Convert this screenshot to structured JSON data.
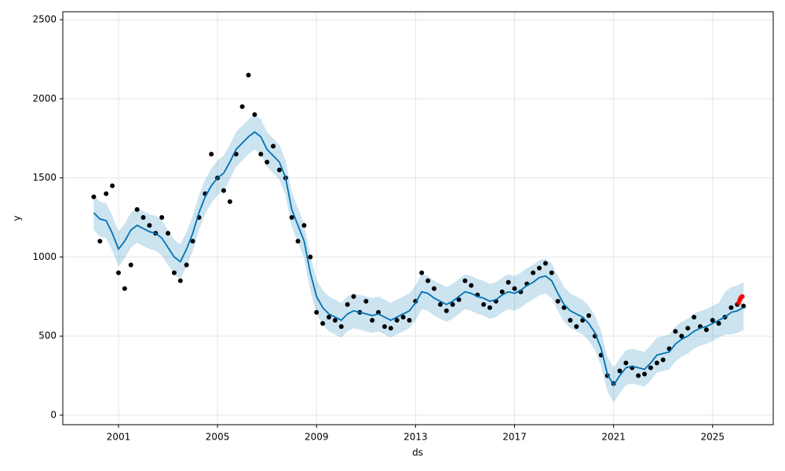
{
  "chart_data": {
    "type": "forecast",
    "xlabel": "ds",
    "ylabel": "y",
    "xlim": [
      1998.75,
      2027.45
    ],
    "xticks": [
      2001,
      2005,
      2009,
      2013,
      2017,
      2021,
      2025
    ],
    "ylim": [
      -60,
      2550
    ],
    "yticks": [
      0,
      500,
      1000,
      1500,
      2000,
      2500
    ],
    "grid": true,
    "x": [
      2000,
      2000.25,
      2000.5,
      2000.75,
      2001,
      2001.25,
      2001.5,
      2001.75,
      2002,
      2002.25,
      2002.5,
      2002.75,
      2003,
      2003.25,
      2003.5,
      2003.75,
      2004,
      2004.25,
      2004.5,
      2004.75,
      2005,
      2005.25,
      2005.5,
      2005.75,
      2006,
      2006.25,
      2006.5,
      2006.75,
      2007,
      2007.25,
      2007.5,
      2007.75,
      2008,
      2008.25,
      2008.5,
      2008.75,
      2009,
      2009.25,
      2009.5,
      2009.75,
      2010,
      2010.25,
      2010.5,
      2010.75,
      2011,
      2011.25,
      2011.5,
      2011.75,
      2012,
      2012.25,
      2012.5,
      2012.75,
      2013,
      2013.25,
      2013.5,
      2013.75,
      2014,
      2014.25,
      2014.5,
      2014.75,
      2015,
      2015.25,
      2015.5,
      2015.75,
      2016,
      2016.25,
      2016.5,
      2016.75,
      2017,
      2017.25,
      2017.5,
      2017.75,
      2018,
      2018.25,
      2018.5,
      2018.75,
      2019,
      2019.25,
      2019.5,
      2019.75,
      2020,
      2020.25,
      2020.5,
      2020.75,
      2021,
      2021.25,
      2021.5,
      2021.75,
      2022,
      2022.25,
      2022.5,
      2022.75,
      2023,
      2023.25,
      2023.5,
      2023.75,
      2024,
      2024.25,
      2024.5,
      2024.75,
      2025,
      2025.25,
      2025.5,
      2025.75,
      2026,
      2026.25
    ],
    "band": {
      "color": "#0072b2",
      "lower": [
        1170,
        1130,
        1120,
        1040,
        940,
        990,
        1060,
        1090,
        1070,
        1050,
        1040,
        1010,
        950,
        890,
        860,
        940,
        1040,
        1170,
        1270,
        1340,
        1390,
        1420,
        1490,
        1570,
        1610,
        1650,
        1680,
        1650,
        1570,
        1530,
        1490,
        1390,
        1190,
        1090,
        990,
        790,
        640,
        570,
        530,
        510,
        490,
        530,
        550,
        540,
        530,
        520,
        530,
        510,
        490,
        510,
        530,
        550,
        600,
        670,
        660,
        630,
        610,
        590,
        610,
        640,
        670,
        660,
        640,
        630,
        610,
        620,
        650,
        670,
        660,
        680,
        710,
        730,
        760,
        770,
        740,
        660,
        590,
        550,
        530,
        510,
        470,
        410,
        310,
        150,
        80,
        140,
        190,
        200,
        190,
        180,
        220,
        270,
        280,
        290,
        340,
        370,
        390,
        420,
        440,
        450,
        470,
        490,
        510,
        510,
        520,
        540
      ],
      "upper": [
        1390,
        1350,
        1340,
        1260,
        1160,
        1210,
        1280,
        1310,
        1290,
        1270,
        1260,
        1230,
        1170,
        1110,
        1080,
        1160,
        1260,
        1390,
        1490,
        1560,
        1610,
        1640,
        1710,
        1790,
        1830,
        1870,
        1900,
        1870,
        1790,
        1750,
        1710,
        1610,
        1410,
        1310,
        1210,
        1010,
        860,
        790,
        750,
        730,
        710,
        750,
        770,
        760,
        750,
        740,
        750,
        730,
        710,
        730,
        750,
        770,
        820,
        890,
        880,
        850,
        830,
        810,
        830,
        860,
        890,
        880,
        860,
        850,
        830,
        840,
        870,
        890,
        880,
        900,
        930,
        950,
        980,
        990,
        960,
        880,
        810,
        770,
        750,
        730,
        690,
        630,
        530,
        370,
        300,
        360,
        410,
        420,
        410,
        400,
        440,
        490,
        500,
        510,
        560,
        590,
        610,
        640,
        660,
        670,
        690,
        710,
        780,
        810,
        820,
        840
      ]
    },
    "series": [
      {
        "style": "points",
        "color": "#000000",
        "values": [
          1380,
          1100,
          1400,
          1450,
          900,
          800,
          950,
          1300,
          1250,
          1200,
          1150,
          1250,
          1150,
          900,
          850,
          950,
          1100,
          1250,
          1400,
          1650,
          1500,
          1420,
          1350,
          1650,
          1950,
          2150,
          1900,
          1650,
          1600,
          1700,
          1550,
          1500,
          1250,
          1100,
          1200,
          1000,
          650,
          580,
          620,
          600,
          560,
          700,
          750,
          650,
          720,
          600,
          650,
          560,
          550,
          600,
          620,
          600,
          720,
          900,
          850,
          800,
          700,
          660,
          700,
          730,
          850,
          820,
          760,
          700,
          680,
          720,
          780,
          840,
          800,
          780,
          830,
          900,
          930,
          960,
          900,
          720,
          680,
          600,
          560,
          600,
          630,
          500,
          380,
          250,
          200,
          280,
          330,
          300,
          250,
          260,
          300,
          330,
          350,
          420,
          530,
          500,
          550,
          620,
          560,
          540,
          600,
          580,
          620,
          680,
          700,
          690
        ]
      },
      {
        "style": "line",
        "color": "#0072b2",
        "values": [
          1280,
          1240,
          1230,
          1150,
          1050,
          1100,
          1170,
          1200,
          1180,
          1160,
          1150,
          1120,
          1060,
          1000,
          970,
          1050,
          1150,
          1280,
          1380,
          1450,
          1500,
          1530,
          1600,
          1680,
          1720,
          1760,
          1790,
          1760,
          1680,
          1640,
          1600,
          1500,
          1300,
          1200,
          1100,
          900,
          750,
          680,
          640,
          620,
          600,
          640,
          660,
          650,
          640,
          630,
          640,
          620,
          600,
          620,
          640,
          660,
          710,
          780,
          770,
          740,
          720,
          700,
          720,
          750,
          780,
          770,
          750,
          740,
          720,
          730,
          760,
          780,
          770,
          790,
          820,
          840,
          870,
          880,
          850,
          770,
          700,
          660,
          640,
          620,
          580,
          520,
          420,
          260,
          190,
          250,
          300,
          310,
          300,
          290,
          330,
          380,
          390,
          400,
          450,
          480,
          500,
          530,
          550,
          560,
          580,
          600,
          620,
          650,
          660,
          680
        ]
      },
      {
        "style": "points",
        "color": "#ff0000",
        "x": [
          2026.05,
          2026.1,
          2026.15,
          2026.2
        ],
        "values": [
          710,
          730,
          745,
          750
        ]
      }
    ]
  }
}
